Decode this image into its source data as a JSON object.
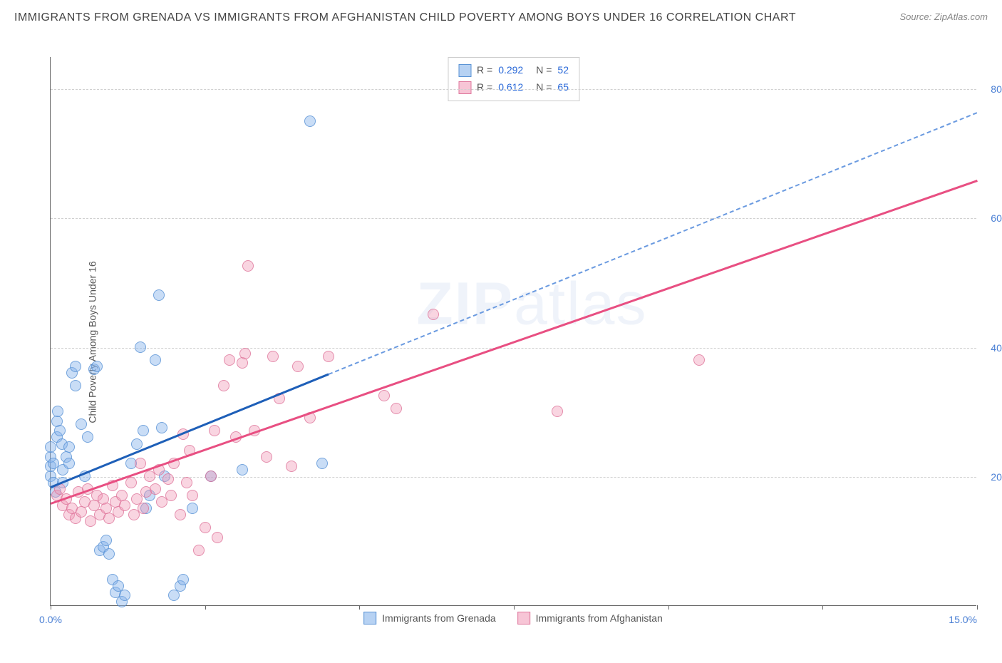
{
  "title": "IMMIGRANTS FROM GRENADA VS IMMIGRANTS FROM AFGHANISTAN CHILD POVERTY AMONG BOYS UNDER 16 CORRELATION CHART",
  "source": "Source: ZipAtlas.com",
  "ylabel": "Child Poverty Among Boys Under 16",
  "watermark_bold": "ZIP",
  "watermark_thin": "atlas",
  "chart": {
    "type": "scatter",
    "xlim": [
      0,
      15
    ],
    "ylim": [
      0,
      85
    ],
    "x_tick_positions": [
      0,
      2.5,
      5,
      7.5,
      10,
      12.5,
      15
    ],
    "x_tick_labels": {
      "0": "0.0%",
      "15": "15.0%"
    },
    "y_ticks": [
      20,
      40,
      60,
      80
    ],
    "y_tick_labels": [
      "20.0%",
      "40.0%",
      "60.0%",
      "80.0%"
    ],
    "grid_color": "#d0d0d0",
    "axis_color": "#666666",
    "tick_label_color": "#4a7fd4",
    "background_color": "#ffffff",
    "dot_radius": 8,
    "series": [
      {
        "name": "Immigrants from Grenada",
        "color": "#87b4eb",
        "border_color": "#508cd2",
        "regression_color": "#1e5fb8",
        "regression_dash_color": "#6a9ae0",
        "R": "0.292",
        "N": "52",
        "regression": {
          "x1": 0.0,
          "y1": 18.5,
          "x2": 4.5,
          "y2": 36.0,
          "dash_x2": 15.0,
          "dash_y2": 76.5
        },
        "points": [
          [
            0.0,
            20
          ],
          [
            0.0,
            21.5
          ],
          [
            0.0,
            23
          ],
          [
            0.0,
            24.5
          ],
          [
            0.05,
            22
          ],
          [
            0.05,
            19
          ],
          [
            0.08,
            17.5
          ],
          [
            0.1,
            26
          ],
          [
            0.1,
            28.5
          ],
          [
            0.12,
            30
          ],
          [
            0.15,
            27
          ],
          [
            0.18,
            25
          ],
          [
            0.2,
            19
          ],
          [
            0.2,
            21
          ],
          [
            0.25,
            23
          ],
          [
            0.3,
            22
          ],
          [
            0.3,
            24.5
          ],
          [
            0.35,
            36
          ],
          [
            0.4,
            37
          ],
          [
            0.4,
            34
          ],
          [
            0.5,
            28
          ],
          [
            0.55,
            20
          ],
          [
            0.6,
            26
          ],
          [
            0.7,
            36.5
          ],
          [
            0.75,
            37
          ],
          [
            0.8,
            8.5
          ],
          [
            0.85,
            9
          ],
          [
            0.9,
            10
          ],
          [
            0.95,
            8
          ],
          [
            1.0,
            4
          ],
          [
            1.05,
            2
          ],
          [
            1.1,
            3
          ],
          [
            1.15,
            0.5
          ],
          [
            1.2,
            1.5
          ],
          [
            1.3,
            22
          ],
          [
            1.4,
            25
          ],
          [
            1.45,
            40
          ],
          [
            1.5,
            27
          ],
          [
            1.55,
            15
          ],
          [
            1.6,
            17
          ],
          [
            1.7,
            38
          ],
          [
            1.75,
            48
          ],
          [
            1.8,
            27.5
          ],
          [
            1.85,
            20
          ],
          [
            2.0,
            1.5
          ],
          [
            2.1,
            3
          ],
          [
            2.15,
            4
          ],
          [
            2.3,
            15
          ],
          [
            2.6,
            20
          ],
          [
            3.1,
            21
          ],
          [
            4.2,
            75
          ],
          [
            4.4,
            22
          ]
        ]
      },
      {
        "name": "Immigrants from Afghanistan",
        "color": "#f096b4",
        "border_color": "#dc6e96",
        "regression_color": "#e84f82",
        "R": "0.612",
        "N": "65",
        "regression": {
          "x1": 0.0,
          "y1": 16.0,
          "x2": 15.0,
          "y2": 66.0
        },
        "points": [
          [
            0.1,
            17
          ],
          [
            0.15,
            18
          ],
          [
            0.2,
            15.5
          ],
          [
            0.25,
            16.5
          ],
          [
            0.3,
            14
          ],
          [
            0.35,
            15
          ],
          [
            0.4,
            13.5
          ],
          [
            0.45,
            17.5
          ],
          [
            0.5,
            14.5
          ],
          [
            0.55,
            16
          ],
          [
            0.6,
            18
          ],
          [
            0.65,
            13
          ],
          [
            0.7,
            15.5
          ],
          [
            0.75,
            17
          ],
          [
            0.8,
            14
          ],
          [
            0.85,
            16.5
          ],
          [
            0.9,
            15
          ],
          [
            0.95,
            13.5
          ],
          [
            1.0,
            18.5
          ],
          [
            1.05,
            16
          ],
          [
            1.1,
            14.5
          ],
          [
            1.15,
            17
          ],
          [
            1.2,
            15.5
          ],
          [
            1.3,
            19
          ],
          [
            1.35,
            14
          ],
          [
            1.4,
            16.5
          ],
          [
            1.45,
            22
          ],
          [
            1.5,
            15
          ],
          [
            1.55,
            17.5
          ],
          [
            1.6,
            20
          ],
          [
            1.7,
            18
          ],
          [
            1.75,
            21
          ],
          [
            1.8,
            16
          ],
          [
            1.9,
            19.5
          ],
          [
            1.95,
            17
          ],
          [
            2.0,
            22
          ],
          [
            2.1,
            14
          ],
          [
            2.15,
            26.5
          ],
          [
            2.2,
            19
          ],
          [
            2.25,
            24
          ],
          [
            2.3,
            17
          ],
          [
            2.4,
            8.5
          ],
          [
            2.5,
            12
          ],
          [
            2.6,
            20
          ],
          [
            2.65,
            27
          ],
          [
            2.7,
            10.5
          ],
          [
            2.8,
            34
          ],
          [
            2.9,
            38
          ],
          [
            3.0,
            26
          ],
          [
            3.1,
            37.5
          ],
          [
            3.15,
            39
          ],
          [
            3.2,
            52.5
          ],
          [
            3.3,
            27
          ],
          [
            3.5,
            23
          ],
          [
            3.6,
            38.5
          ],
          [
            3.7,
            32
          ],
          [
            3.9,
            21.5
          ],
          [
            4.0,
            37
          ],
          [
            4.2,
            29
          ],
          [
            4.5,
            38.5
          ],
          [
            5.4,
            32.5
          ],
          [
            5.6,
            30.5
          ],
          [
            6.2,
            45
          ],
          [
            8.2,
            30
          ],
          [
            10.5,
            38
          ]
        ]
      }
    ]
  },
  "bottom_legend": [
    {
      "swatch": "blue",
      "label": "Immigrants from Grenada"
    },
    {
      "swatch": "pink",
      "label": "Immigrants from Afghanistan"
    }
  ]
}
